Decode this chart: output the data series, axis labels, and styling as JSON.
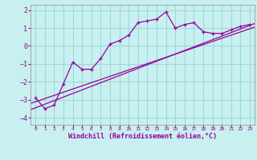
{
  "xlabel": "Windchill (Refroidissement éolien,°C)",
  "bg_color": "#c8f0f0",
  "line_color": "#990099",
  "grid_color": "#a0d8d8",
  "x_values": [
    0,
    1,
    2,
    3,
    4,
    5,
    6,
    7,
    8,
    9,
    10,
    11,
    12,
    13,
    14,
    15,
    16,
    17,
    18,
    19,
    20,
    21,
    22,
    23
  ],
  "series1": [
    -2.9,
    -3.5,
    -3.3,
    -2.1,
    -0.9,
    -1.3,
    -1.3,
    -0.7,
    0.1,
    0.3,
    0.6,
    1.3,
    1.4,
    1.5,
    1.9,
    1.0,
    1.2,
    1.3,
    0.8,
    0.7,
    0.7,
    0.9,
    1.1,
    1.2
  ],
  "line1_pts": [
    [
      -0.5,
      -3.55
    ],
    [
      23.5,
      1.25
    ]
  ],
  "line2_pts": [
    [
      -0.5,
      -3.2
    ],
    [
      23.5,
      1.05
    ]
  ],
  "ylim": [
    -4.4,
    2.3
  ],
  "xlim": [
    -0.5,
    23.5
  ],
  "yticks": [
    -4,
    -3,
    -2,
    -1,
    0,
    1,
    2
  ],
  "xticks": [
    0,
    1,
    2,
    3,
    4,
    5,
    6,
    7,
    8,
    9,
    10,
    11,
    12,
    13,
    14,
    15,
    16,
    17,
    18,
    19,
    20,
    21,
    22,
    23
  ]
}
